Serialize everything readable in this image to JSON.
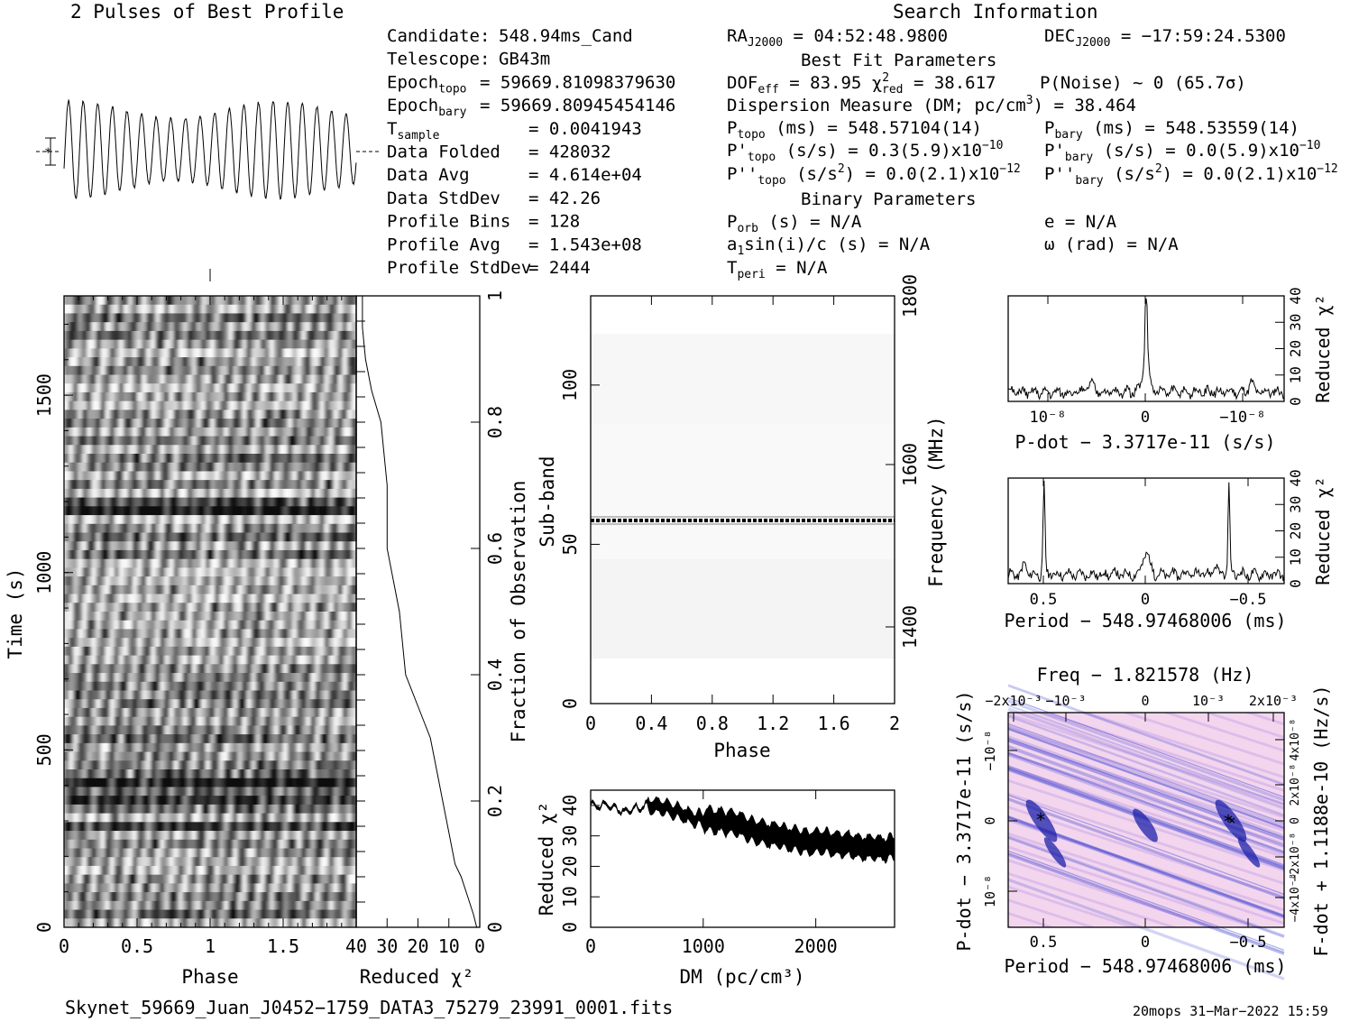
{
  "header": {
    "profile_title": "2 Pulses of Best Profile",
    "search_title": "Search Information",
    "best_fit_title": "Best Fit Parameters",
    "binary_title": "Binary Parameters"
  },
  "info_left": [
    {
      "label": "Candidate:",
      "value": "548.94ms_Cand"
    },
    {
      "label": "Telescope:",
      "value": "GB43m"
    },
    {
      "label": "Epoch_topo",
      "value": "= 59669.81098379630"
    },
    {
      "label": "Epoch_bary",
      "value": "= 59669.80945454146"
    },
    {
      "label": "T_sample",
      "value": "=  0.0041943"
    },
    {
      "label": "Data Folded",
      "value": "=  428032"
    },
    {
      "label": "Data Avg",
      "value": "=  4.614e+04"
    },
    {
      "label": "Data StdDev",
      "value": "=  42.26"
    },
    {
      "label": "Profile Bins",
      "value": "=  128"
    },
    {
      "label": "Profile Avg",
      "value": "=  1.543e+08"
    },
    {
      "label": "Profile StdDev",
      "value": "=  2444"
    }
  ],
  "info_mid": [
    "RA_J2000 = 04:52:48.9800",
    "DOF_eff = 83.95  χ²_red = 38.617",
    "Dispersion Measure (DM; pc/cm³) = 38.464",
    "P_topo (ms) =  548.57104(14)",
    "P'_topo (s/s) =  0.3(5.9)x10⁻¹⁰",
    "P''_topo (s/s²) = 0.0(2.1)x10⁻¹²",
    "P_orb (s) = N/A",
    "a₁sin(i)/c (s) = N/A",
    "T_peri = N/A"
  ],
  "info_right": [
    "DEC_J2000 = −17:59:24.5300",
    "P(Noise) ~ 0   (65.7σ)",
    "P_bary (ms) =  548.53559(14)",
    "P'_bary (s/s) = 0.0(5.9)x10⁻¹⁰",
    "P''_bary (s/s²) = 0.0(2.1)x10⁻¹²",
    "e = N/A",
    "ω (rad) = N/A"
  ],
  "footer": {
    "filename": "Skynet_59669_Juan_J0452−1759_DATA3_75279_23991_0001.fits",
    "stamp": "20mops 31−Mar−2022 15:59"
  },
  "chart_data": [
    {
      "type": "line",
      "name": "profile",
      "title": "2 Pulses of Best Profile",
      "x": [
        0,
        2
      ],
      "cycles": 20
    },
    {
      "type": "heatmap",
      "name": "time-phase",
      "xlabel": "Phase",
      "ylabel": "Time (s)",
      "xticks": [
        "0",
        "0.5",
        "1",
        "1.5"
      ],
      "yticks": [
        "0",
        "500",
        "1000",
        "1500"
      ],
      "xlim": [
        0,
        2
      ],
      "ylim": [
        0,
        1780
      ]
    },
    {
      "type": "line",
      "name": "reduced-chi2-time",
      "xlabel": "Reduced χ²",
      "ylabel": "Fraction of Observation",
      "xticks": [
        "40",
        "30",
        "20",
        "10",
        "0"
      ],
      "yticks": [
        "0",
        "0.2",
        "0.4",
        "0.6",
        "0.8",
        "1"
      ],
      "xlim": [
        40,
        0
      ],
      "ylim": [
        0,
        1
      ],
      "x": [
        1,
        2,
        4,
        6,
        8,
        10,
        12,
        14,
        16,
        20,
        24,
        26,
        28,
        30,
        30,
        32,
        35,
        37,
        38,
        38
      ],
      "y": [
        0.0,
        0.02,
        0.05,
        0.08,
        0.1,
        0.15,
        0.2,
        0.25,
        0.3,
        0.35,
        0.4,
        0.5,
        0.55,
        0.6,
        0.7,
        0.8,
        0.85,
        0.9,
        0.95,
        1.0
      ]
    },
    {
      "type": "heatmap",
      "name": "subband-phase",
      "xlabel": "Phase",
      "ylabel": "Sub-band",
      "y2label": "Frequency (MHz)",
      "xticks": [
        "0",
        "0.4",
        "0.8",
        "1.2",
        "1.6",
        "2"
      ],
      "yticks": [
        "0",
        "50",
        "100"
      ],
      "y2ticks": [
        "1400",
        "1600",
        "1800"
      ],
      "xlim": [
        0,
        2
      ],
      "ylim": [
        0,
        128
      ],
      "bright_subband": 58
    },
    {
      "type": "line",
      "name": "dm-chi2",
      "xlabel": "DM (pc/cm³)",
      "ylabel": "Reduced χ²",
      "xticks": [
        "0",
        "1000",
        "2000"
      ],
      "yticks": [
        "0",
        "10",
        "20",
        "30",
        "40"
      ],
      "xlim": [
        0,
        2700
      ],
      "ylim": [
        0,
        45
      ],
      "x": [
        0,
        150,
        300,
        500,
        700,
        900,
        1100,
        1300,
        1500,
        1700,
        1900,
        2100,
        2300,
        2500,
        2700
      ],
      "y": [
        40,
        40,
        38,
        40,
        39,
        36,
        35,
        34,
        31,
        30,
        28,
        28,
        27,
        26,
        26
      ]
    },
    {
      "type": "line",
      "name": "pdot-chi2",
      "xlabel": "P-dot − 3.3717e-11 (s/s)",
      "ylabel": "Reduced χ²",
      "xticks": [
        "10⁻⁸",
        "0",
        "−10⁻⁸"
      ],
      "yticks": [
        "0",
        "10",
        "20",
        "30",
        "40"
      ],
      "ylim": [
        0,
        40
      ],
      "peak": 38
    },
    {
      "type": "line",
      "name": "period-chi2",
      "xlabel": "Period − 548.97468006 (ms)",
      "ylabel": "Reduced χ²",
      "xticks": [
        "0.5",
        "0",
        "−0.5"
      ],
      "yticks": [
        "0",
        "10",
        "20",
        "30",
        "40"
      ],
      "ylim": [
        0,
        40
      ],
      "peaks": [
        38,
        38
      ]
    },
    {
      "type": "heatmap",
      "name": "p-pdot",
      "title": "Freq − 1.821578 (Hz)",
      "xlabel": "Period − 548.97468006 (ms)",
      "ylabel": "P-dot − 3.3717e-11 (s/s)",
      "y2label": "F-dot + 1.1188e-10 (Hz/s)",
      "xticks": [
        "0.5",
        "0",
        "−0.5"
      ],
      "x2ticks": [
        "−2x10⁻³",
        "−10⁻³",
        "0",
        "10⁻³",
        "2x10⁻³"
      ],
      "yticks": [
        "−10⁻⁸",
        "0",
        "10⁻⁸"
      ],
      "y2ticks": [
        "4x10⁻⁸",
        "2x10⁻⁸",
        "0",
        "−2x10⁻⁸",
        "−4x10⁻⁸"
      ]
    }
  ],
  "colors": {
    "ink": "#000000",
    "ppdot_bg": "#f3d6ee",
    "ppdot_stripe": "#2b2fc9",
    "marker_green": "#1fb35a",
    "marker_cyan": "#1fd0d0"
  }
}
